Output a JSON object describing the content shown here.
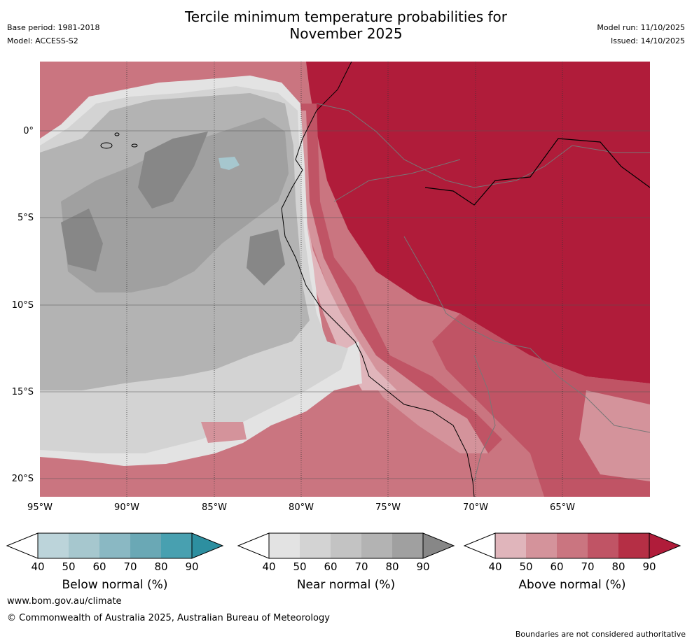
{
  "title": {
    "line1": "Tercile minimum temperature probabilities for",
    "line2": "November 2025"
  },
  "meta": {
    "base_period": "Base period: 1981-2018",
    "model": "Model: ACCESS-S2",
    "model_run": "Model run: 11/10/2025",
    "issued": "Issued: 14/10/2025"
  },
  "map": {
    "lat_labels": [
      "0°",
      "5°S",
      "10°S",
      "15°S",
      "20°S"
    ],
    "lat_values": [
      0,
      -5,
      -10,
      -15,
      -20
    ],
    "lon_labels": [
      "95°W",
      "90°W",
      "85°W",
      "80°W",
      "75°W",
      "70°W",
      "65°W"
    ],
    "lon_values": [
      -95,
      -90,
      -85,
      -80,
      -75,
      -70,
      -65
    ],
    "lon_range": [
      -95,
      -60
    ],
    "lat_range": [
      -21,
      4
    ]
  },
  "legends": [
    {
      "label": "Below normal (%)",
      "ticks": [
        "40",
        "50",
        "60",
        "70",
        "80",
        "90"
      ],
      "colors": [
        "#ffffff",
        "#bcd4da",
        "#a6c7ce",
        "#8ab8c3",
        "#6aa8b5",
        "#48a0b0",
        "#2d8fa0"
      ]
    },
    {
      "label": "Near normal (%)",
      "ticks": [
        "40",
        "50",
        "60",
        "70",
        "80",
        "90"
      ],
      "colors": [
        "#ffffff",
        "#e3e3e3",
        "#d3d3d3",
        "#c3c3c3",
        "#b3b3b3",
        "#a0a0a0",
        "#878787"
      ]
    },
    {
      "label": "Above normal (%)",
      "ticks": [
        "40",
        "50",
        "60",
        "70",
        "80",
        "90"
      ],
      "colors": [
        "#ffffff",
        "#e0b5bb",
        "#d4939b",
        "#ca7580",
        "#c05465",
        "#b52f45",
        "#b01c3a"
      ]
    }
  ],
  "footer": {
    "url": "www.bom.gov.au/climate",
    "copyright": "© Commonwealth of Australia 2025, Australian Bureau of Meteorology",
    "disclaimer": "Boundaries are not considered authoritative"
  }
}
